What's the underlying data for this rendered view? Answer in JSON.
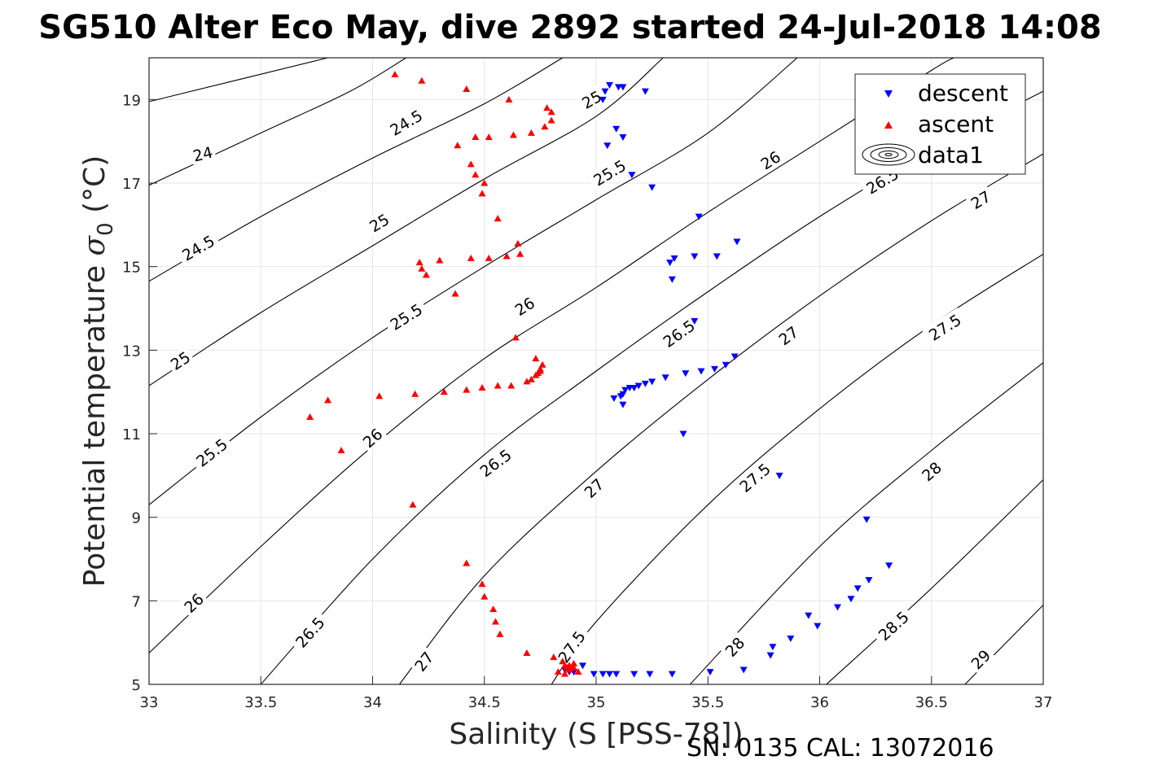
{
  "chart_data": {
    "type": "scatter",
    "title": "SG510 Alter Eco May, dive 2892 started 24-Jul-2018 14:08",
    "xlabel": "Salinity (S [PSS-78])",
    "ylabel_main": "Potential temperature ",
    "ylabel_sigma": "σ",
    "ylabel_sub": "0",
    "ylabel_unit": " (°C)",
    "xlim": [
      33,
      37
    ],
    "ylim": [
      5,
      20
    ],
    "x_ticks": [
      "33",
      "33.5",
      "34",
      "34.5",
      "35",
      "35.5",
      "36",
      "36.5",
      "37"
    ],
    "y_ticks": [
      "5",
      "7",
      "9",
      "11",
      "13",
      "15",
      "17",
      "19"
    ],
    "grid": true,
    "legend_position": "top-right",
    "legend": [
      "descent",
      "ascent",
      "data1"
    ],
    "footer": "SN: 0135  CAL: 13072016",
    "colors": {
      "descent": "#0000ff",
      "ascent": "#ff0000",
      "contour": "#000000",
      "grid": "#e6e6e6",
      "axis": "#262626"
    },
    "contours": [
      {
        "label": "24",
        "points": [
          [
            33,
            18.95
          ],
          [
            33.8,
            20
          ]
        ],
        "labels_at": [
          [
            33.24,
            17.7
          ]
        ]
      },
      {
        "label": "24.5",
        "points": [
          [
            33,
            16.95
          ],
          [
            33.5,
            18.2
          ],
          [
            33.9,
            19.2
          ],
          [
            34.15,
            20
          ]
        ],
        "labels_at": [
          [
            34.15,
            18.45
          ]
        ]
      },
      {
        "label": "24.5",
        "points": [
          [
            33,
            14.65
          ],
          [
            33.5,
            16.2
          ],
          [
            34,
            17.6
          ],
          [
            34.5,
            18.9
          ],
          [
            34.85,
            20
          ]
        ],
        "labels_at": [
          [
            33.22,
            15.45
          ]
        ]
      },
      {
        "label": "25",
        "points": [
          [
            33,
            12.15
          ],
          [
            33.5,
            13.9
          ],
          [
            34,
            15.5
          ],
          [
            34.5,
            17.1
          ],
          [
            35,
            18.6
          ],
          [
            35.3,
            20
          ]
        ],
        "labels_at": [
          [
            33.14,
            12.75
          ],
          [
            34.03,
            16.05
          ],
          [
            34.98,
            19.0
          ]
        ]
      },
      {
        "label": "25.5",
        "points": [
          [
            33,
            9.3
          ],
          [
            33.5,
            11.4
          ],
          [
            34,
            13.3
          ],
          [
            34.5,
            15.0
          ],
          [
            35,
            16.6
          ],
          [
            35.5,
            18.2
          ],
          [
            35.9,
            20
          ]
        ],
        "labels_at": [
          [
            33.28,
            10.55
          ],
          [
            34.15,
            13.8
          ],
          [
            35.06,
            17.25
          ]
        ]
      },
      {
        "label": "26",
        "points": [
          [
            33,
            5.75
          ],
          [
            33.5,
            8.3
          ],
          [
            34,
            10.7
          ],
          [
            34.5,
            12.8
          ],
          [
            35,
            14.5
          ],
          [
            35.5,
            16.3
          ],
          [
            36,
            18.0
          ],
          [
            36.5,
            19.7
          ],
          [
            36.6,
            20
          ]
        ],
        "labels_at": [
          [
            33.2,
            6.95
          ],
          [
            34.0,
            10.9
          ],
          [
            34.68,
            14.05
          ],
          [
            35.78,
            17.55
          ]
        ]
      },
      {
        "label": "26.5",
        "points": [
          [
            33.5,
            5.0
          ],
          [
            34,
            8.0
          ],
          [
            34.5,
            10.5
          ],
          [
            35,
            12.5
          ],
          [
            35.5,
            14.4
          ],
          [
            36,
            16.2
          ],
          [
            36.5,
            17.8
          ],
          [
            37,
            19.2
          ]
        ],
        "labels_at": [
          [
            33.72,
            6.25
          ],
          [
            34.55,
            10.3
          ],
          [
            35.37,
            13.4
          ],
          [
            36.28,
            17.05
          ]
        ]
      },
      {
        "label": "27",
        "points": [
          [
            34.12,
            5.0
          ],
          [
            34.5,
            7.6
          ],
          [
            35,
            10.1
          ],
          [
            35.5,
            12.3
          ],
          [
            36,
            14.3
          ],
          [
            36.5,
            16.1
          ],
          [
            37,
            17.7
          ]
        ],
        "labels_at": [
          [
            34.23,
            5.55
          ],
          [
            34.99,
            9.7
          ],
          [
            35.86,
            13.35
          ],
          [
            36.72,
            16.6
          ]
        ]
      },
      {
        "label": "27.5",
        "points": [
          [
            34.8,
            5.0
          ],
          [
            35,
            6.5
          ],
          [
            35.5,
            9.3
          ],
          [
            36,
            11.6
          ],
          [
            36.5,
            13.6
          ],
          [
            37,
            15.3
          ]
        ],
        "labels_at": [
          [
            34.89,
            5.9
          ],
          [
            35.71,
            9.95
          ],
          [
            36.56,
            13.55
          ]
        ]
      },
      {
        "label": "28",
        "points": [
          [
            35.42,
            5.0
          ],
          [
            36,
            8.3
          ],
          [
            36.5,
            10.6
          ],
          [
            37,
            12.7
          ]
        ],
        "labels_at": [
          [
            35.62,
            5.9
          ],
          [
            36.5,
            10.1
          ]
        ]
      },
      {
        "label": "28.5",
        "points": [
          [
            36.03,
            5.0
          ],
          [
            36.5,
            7.3
          ],
          [
            37,
            9.9
          ]
        ],
        "labels_at": [
          [
            36.33,
            6.4
          ]
        ]
      },
      {
        "label": "29",
        "points": [
          [
            36.65,
            5.0
          ],
          [
            37,
            6.9
          ]
        ],
        "labels_at": [
          [
            36.72,
            5.6
          ]
        ]
      }
    ],
    "series": [
      {
        "name": "descent",
        "marker": "down-triangle",
        "x": [
          35.04,
          35.06,
          35.1,
          35.12,
          35.22,
          35.03,
          35.09,
          35.05,
          35.12,
          35.16,
          35.25,
          35.46,
          35.33,
          35.34,
          35.35,
          35.44,
          35.54,
          35.63,
          35.44,
          35.62,
          35.58,
          35.53,
          35.47,
          35.4,
          35.31,
          35.25,
          35.22,
          35.19,
          35.17,
          35.15,
          35.13,
          35.12,
          35.11,
          35.08,
          35.12,
          35.39,
          35.82,
          36.21,
          36.31,
          36.22,
          36.17,
          36.14,
          36.08,
          35.99,
          35.95,
          35.87,
          35.79,
          35.78,
          35.66,
          35.51,
          35.34,
          35.24,
          35.17,
          35.09,
          35.06,
          35.03,
          34.99,
          34.94,
          34.9,
          34.88,
          34.87,
          34.86,
          34.88
        ],
        "y": [
          19.2,
          19.35,
          19.3,
          19.3,
          19.2,
          19.0,
          18.3,
          17.9,
          18.1,
          17.2,
          16.9,
          16.2,
          15.1,
          14.7,
          15.2,
          15.25,
          15.25,
          15.6,
          13.7,
          12.85,
          12.65,
          12.55,
          12.5,
          12.45,
          12.35,
          12.25,
          12.2,
          12.15,
          12.1,
          12.1,
          12.05,
          11.95,
          11.9,
          11.85,
          11.7,
          11.0,
          10.0,
          8.95,
          7.85,
          7.5,
          7.3,
          7.05,
          6.85,
          6.4,
          6.65,
          6.1,
          5.9,
          5.7,
          5.35,
          5.3,
          5.25,
          5.25,
          5.25,
          5.25,
          5.25,
          5.25,
          5.25,
          5.45,
          5.3,
          5.35,
          5.4,
          5.35,
          5.3
        ]
      },
      {
        "name": "ascent",
        "marker": "up-triangle",
        "x": [
          34.1,
          34.22,
          34.42,
          34.61,
          34.78,
          34.8,
          34.8,
          34.77,
          34.71,
          34.63,
          34.52,
          34.46,
          34.38,
          34.44,
          34.46,
          34.5,
          34.49,
          34.56,
          34.65,
          34.66,
          34.6,
          34.52,
          34.44,
          34.3,
          34.21,
          34.22,
          34.24,
          34.37,
          34.64,
          34.73,
          34.76,
          34.75,
          34.75,
          34.74,
          34.73,
          34.71,
          34.69,
          34.62,
          34.56,
          34.49,
          34.42,
          34.32,
          34.19,
          34.03,
          33.8,
          33.72,
          33.86,
          34.18,
          34.42,
          34.49,
          34.5,
          34.54,
          34.55,
          34.57,
          34.69,
          34.81,
          34.83,
          34.85,
          34.86,
          34.87,
          34.88,
          34.9,
          34.92,
          34.86,
          34.88,
          34.9
        ],
        "y": [
          19.6,
          19.45,
          19.25,
          19.0,
          18.8,
          18.7,
          18.5,
          18.35,
          18.2,
          18.15,
          18.1,
          18.1,
          17.9,
          17.45,
          17.2,
          17.0,
          16.75,
          16.15,
          15.55,
          15.3,
          15.25,
          15.2,
          15.2,
          15.15,
          15.1,
          14.95,
          14.8,
          14.35,
          13.3,
          12.8,
          12.65,
          12.5,
          12.55,
          12.45,
          12.4,
          12.3,
          12.25,
          12.15,
          12.15,
          12.1,
          12.05,
          12.0,
          11.95,
          11.9,
          11.8,
          11.4,
          10.6,
          9.3,
          7.9,
          7.4,
          7.1,
          6.8,
          6.5,
          6.2,
          5.75,
          5.65,
          5.3,
          5.55,
          5.45,
          5.4,
          5.35,
          5.5,
          5.3,
          5.25,
          5.45,
          5.4
        ]
      }
    ]
  }
}
